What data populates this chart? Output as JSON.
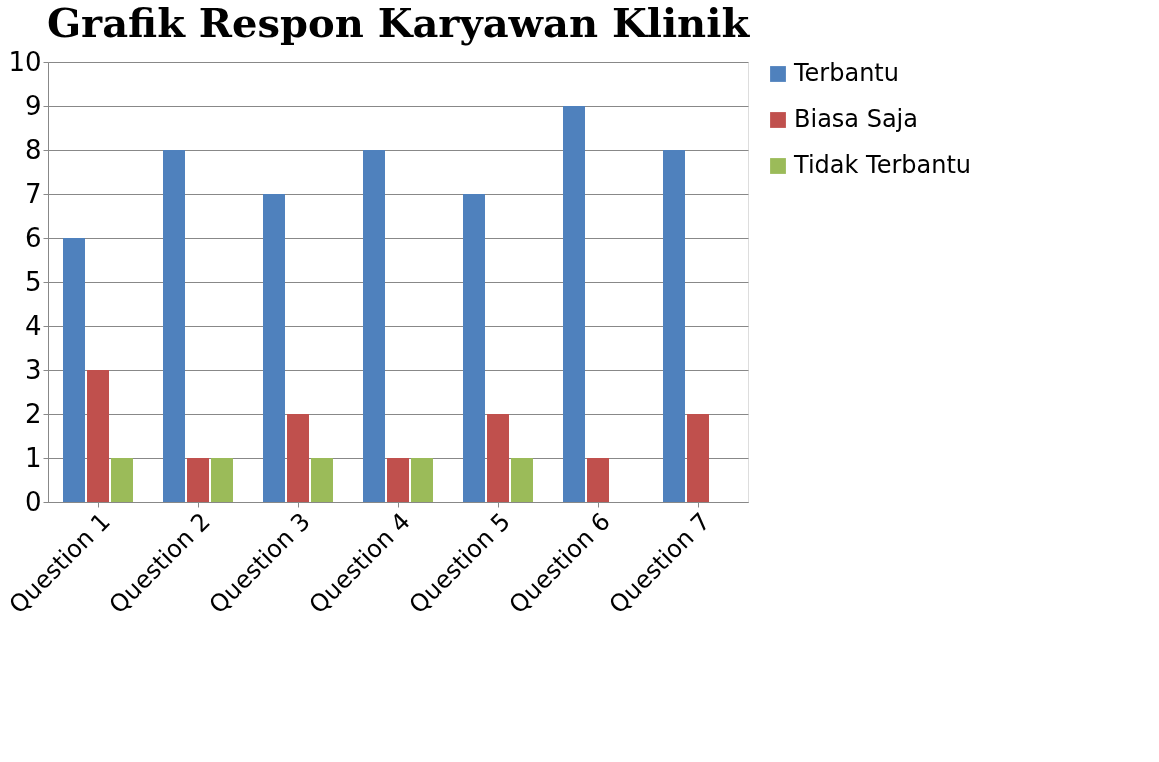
{
  "chart_data": {
    "type": "bar",
    "title": "Grafik Respon Karyawan Klinik",
    "categories": [
      "Question 1",
      "Question 2",
      "Question 3",
      "Question 4",
      "Question 5",
      "Question 6",
      "Question 7"
    ],
    "series": [
      {
        "name": "Terbantu",
        "color": "#4f81bd",
        "values": [
          6,
          8,
          7,
          8,
          7,
          9,
          8
        ]
      },
      {
        "name": "Biasa Saja",
        "color": "#c0504d",
        "values": [
          3,
          1,
          2,
          1,
          2,
          1,
          2
        ]
      },
      {
        "name": "Tidak Terbantu",
        "color": "#9bbb59",
        "values": [
          1,
          1,
          1,
          1,
          1,
          0,
          0
        ]
      }
    ],
    "ylim": [
      0,
      10
    ],
    "yticks": [
      0,
      1,
      2,
      3,
      4,
      5,
      6,
      7,
      8,
      9,
      10
    ],
    "grid": "y",
    "legend": "right"
  }
}
